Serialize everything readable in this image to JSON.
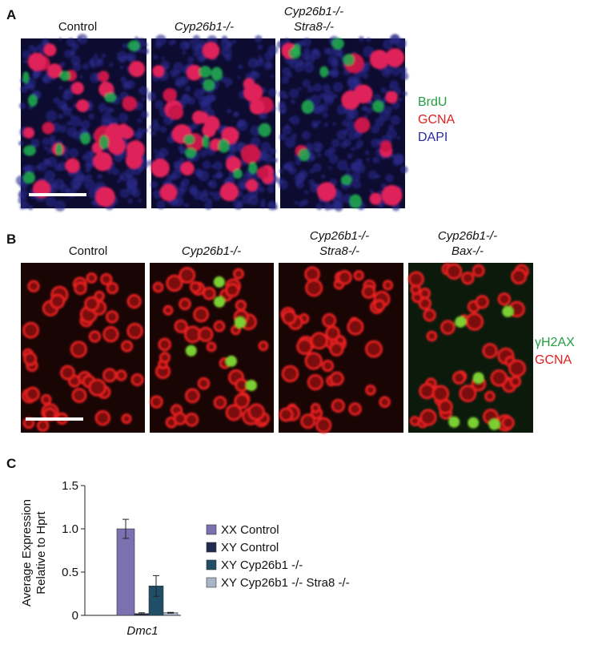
{
  "panel_a": {
    "label": "A",
    "columns": [
      [
        "Control"
      ],
      [
        "Cyp26b1-/-"
      ],
      [
        "Cyp26b1-/-",
        "Stra8-/-"
      ]
    ],
    "stains": [
      "BrdU",
      "GCNA",
      "DAPI"
    ]
  },
  "panel_b": {
    "label": "B",
    "columns": [
      [
        "Control"
      ],
      [
        "Cyp26b1-/-"
      ],
      [
        "Cyp26b1-/-",
        "Stra8-/-"
      ],
      [
        "Cyp26b1-/-",
        "Bax-/-"
      ]
    ],
    "stains": [
      "γH2AX",
      "GCNA"
    ]
  },
  "panel_c": {
    "label": "C"
  },
  "chart_data": {
    "type": "bar",
    "y_label": [
      "Average Expression",
      "Relative to Hprt"
    ],
    "categories": [
      "Dmc1"
    ],
    "series": [
      {
        "name": "XX Control",
        "color": "#7b70b0",
        "values": [
          1.0
        ],
        "errors": [
          0.11
        ]
      },
      {
        "name": "XY Control",
        "color": "#1e2a50",
        "values": [
          0.02
        ],
        "errors": [
          0.01
        ]
      },
      {
        "name": "XY Cyp26b1 -/-",
        "color": "#1f4e66",
        "values": [
          0.34
        ],
        "errors": [
          0.12
        ]
      },
      {
        "name": "XY Cyp26b1 -/- Stra8 -/-",
        "color": "#a9b4c9",
        "values": [
          0.03
        ],
        "errors": [
          0.005
        ]
      }
    ],
    "ylim": [
      0,
      1.5
    ],
    "yticks": [
      0,
      0.5,
      {
        "value": 1,
        "label": "1.0"
      },
      1.5
    ]
  }
}
